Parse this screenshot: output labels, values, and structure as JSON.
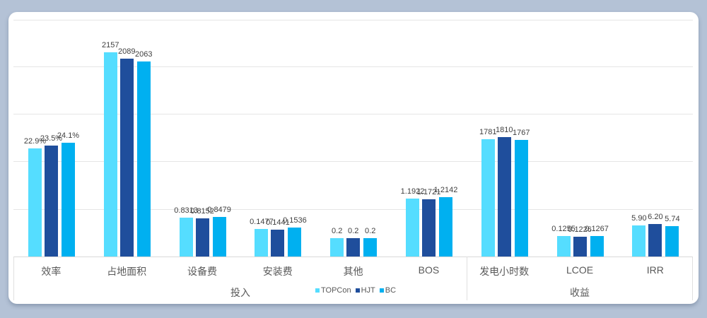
{
  "chart_data": {
    "type": "bar",
    "categories": [
      "效率",
      "占地面积",
      "设备费",
      "安装费",
      "其他",
      "BOS",
      "发电小时数",
      "LCOE",
      "IRR"
    ],
    "category_groups": [
      {
        "label": "投入",
        "categories": [
          "效率",
          "占地面积",
          "设备费",
          "安装费",
          "其他",
          "BOS"
        ]
      },
      {
        "label": "收益",
        "categories": [
          "发电小时数",
          "LCOE",
          "IRR"
        ]
      }
    ],
    "series": [
      {
        "name": "TOPCon",
        "color": "#55DDFF",
        "values": [
          22.9,
          2157,
          0.8313,
          0.1477,
          0.2,
          1.1922,
          1781,
          0.1255,
          5.9
        ],
        "labels": [
          "22.9%",
          "2157",
          "0.8313",
          "0.1477",
          "0.2",
          "1.1922",
          "1781",
          "0.1255",
          "5.90"
        ]
      },
      {
        "name": "HJT",
        "color": "#1F4E9C",
        "values": [
          23.5,
          2089,
          0.8152,
          0.1441,
          0.2,
          1.1721,
          1810,
          0.1226,
          6.2
        ],
        "labels": [
          "23.5%",
          "2089",
          "0.8152",
          "0.1441",
          "0.2",
          "1.1721",
          "1810",
          "0.1226",
          "6.20"
        ]
      },
      {
        "name": "BC",
        "color": "#00B0F0",
        "values": [
          24.1,
          2063,
          0.8479,
          0.1536,
          0.2,
          1.2142,
          1767,
          0.1267,
          5.74
        ],
        "labels": [
          "24.1%",
          "2063",
          "0.8479",
          "0.1536",
          "0.2",
          "1.2142",
          "1767",
          "0.1267",
          "5.74"
        ]
      }
    ],
    "title": "",
    "xlabel": "",
    "ylabel": "",
    "grid": true,
    "legend_position": "bottom-center",
    "note": ""
  }
}
